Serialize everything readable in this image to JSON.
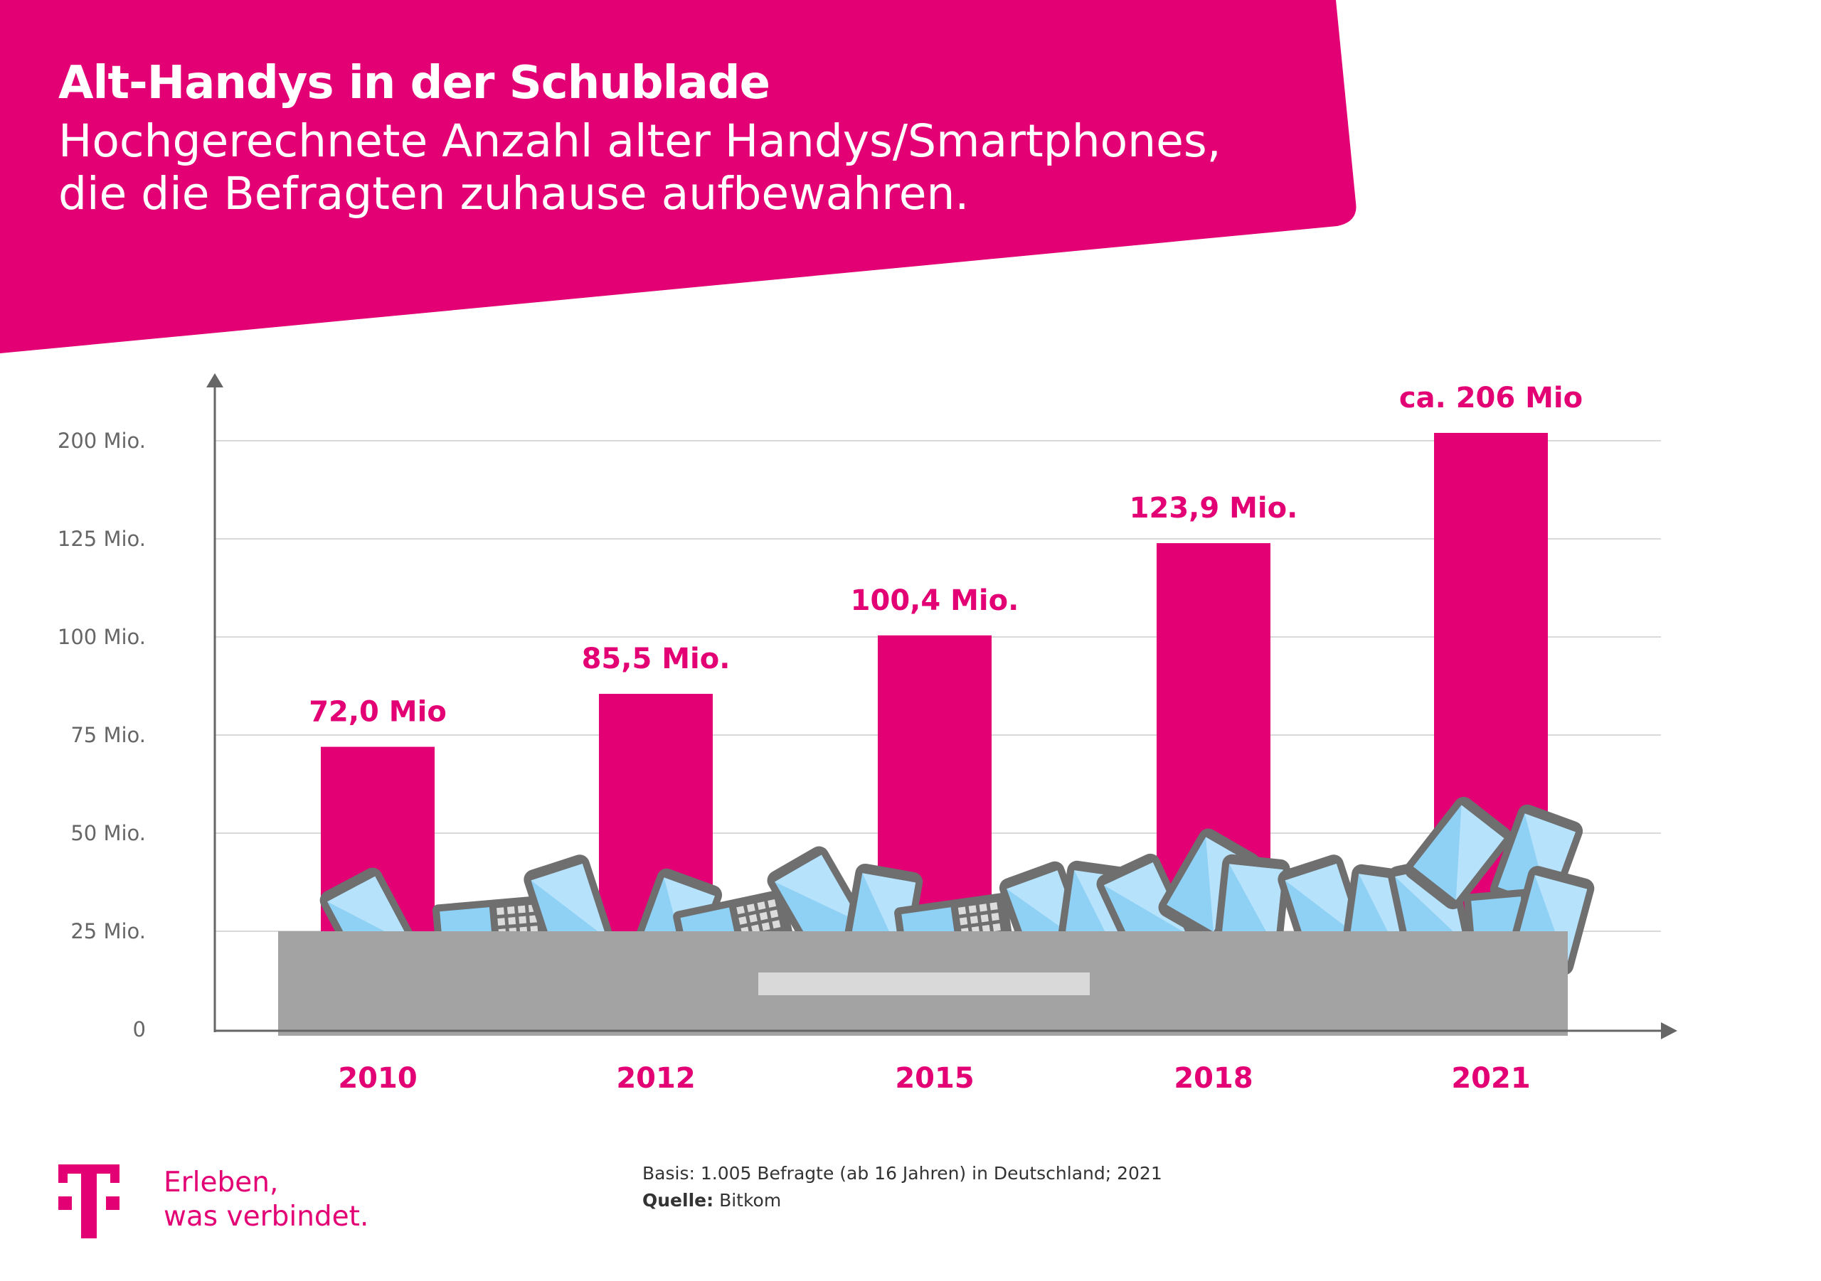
{
  "header": {
    "title": "Alt-Handys in der Schublade",
    "subtitle": "Hochgerechnete Anzahl alter Handys/Smartphones, die die Befragten zuhause aufbewahren."
  },
  "colors": {
    "accent": "#e20074",
    "drawer": "#a3a3a3",
    "grid": "#d9d9d9",
    "phone": "#8fd0f5"
  },
  "chart_data": {
    "type": "bar",
    "categories": [
      "2010",
      "2012",
      "2015",
      "2018",
      "2021"
    ],
    "values": [
      72.0,
      85.5,
      100.4,
      123.9,
      206
    ],
    "data_labels": [
      "72,0 Mio",
      "85,5 Mio.",
      "100,4 Mio.",
      "123,9 Mio.",
      "ca. 206 Mio"
    ],
    "yticks": [
      {
        "label": "0",
        "value": 0
      },
      {
        "label": "25 Mio.",
        "value": 25
      },
      {
        "label": "50 Mio.",
        "value": 50
      },
      {
        "label": "75 Mio.",
        "value": 75
      },
      {
        "label": "100 Mio.",
        "value": 100
      },
      {
        "label": "125 Mio.",
        "value": 125
      },
      {
        "label": "200 Mio.",
        "value": 200
      }
    ],
    "ylim": [
      0,
      220
    ],
    "grid": true,
    "xlabel": "",
    "ylabel": ""
  },
  "footer": {
    "slogan_line1": "Erleben,",
    "slogan_line2": "was verbindet.",
    "basis": "Basis: 1.005 Befragte (ab 16 Jahren) in Deutschland; 2021",
    "source_label": "Quelle:",
    "source": "Bitkom"
  }
}
